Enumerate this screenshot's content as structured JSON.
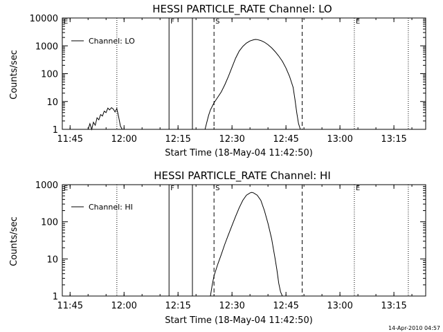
{
  "footer_timestamp": "14-Apr-2010 04:57",
  "chart_data": [
    {
      "type": "line",
      "title": "HESSI PARTICLE_RATE Channel: LO",
      "xlabel": "Start Time (18-May-04 11:42:50)",
      "ylabel": "Counts/sec",
      "x_unit": "minutes since 11:42:50",
      "xlim": [
        0,
        101
      ],
      "ylim": [
        1,
        10000
      ],
      "yscale": "log",
      "grid": false,
      "legend": {
        "position": "top-left",
        "entries": [
          "Channel: LO"
        ]
      },
      "x_tick_labels": [
        "11:45",
        "12:00",
        "12:15",
        "12:30",
        "12:45",
        "13:00",
        "13:15"
      ],
      "x_tick_times": [
        "11:45",
        "12:00",
        "12:15",
        "12:30",
        "12:45",
        "13:00",
        "13:15"
      ],
      "y_tick_labels": [
        "1",
        "10",
        "100",
        "1000",
        "10000"
      ],
      "y_tick_values": [
        1,
        10,
        100,
        1000,
        10000
      ],
      "markers": [
        {
          "label": "F",
          "time": "12:12:30",
          "style": "solid"
        },
        {
          "label": "",
          "time": "12:19:00",
          "style": "solid"
        },
        {
          "label": "S",
          "time": "12:25:00",
          "style": "dashed"
        },
        {
          "label": "",
          "time": "12:49:30",
          "style": "dashed"
        },
        {
          "label": "",
          "time": "11:58:00",
          "style": "dotted"
        },
        {
          "label": "E",
          "time": "13:04:00",
          "style": "dotted"
        },
        {
          "label": "",
          "time": "13:19:00",
          "style": "dotted"
        },
        {
          "label": "E",
          "time": "11:42:50",
          "style": "none"
        }
      ],
      "series": [
        {
          "name": "Channel: LO",
          "segments": [
            [
              [
                "11:50:00",
                1
              ],
              [
                "11:50:30",
                1.6
              ],
              [
                "11:51:00",
                1
              ],
              [
                "11:51:30",
                1.8
              ],
              [
                "11:52:00",
                1.4
              ],
              [
                "11:52:30",
                2.6
              ],
              [
                "11:53:00",
                2.2
              ],
              [
                "11:53:30",
                3.4
              ],
              [
                "11:54:00",
                3.0
              ],
              [
                "11:54:30",
                4.5
              ],
              [
                "11:55:00",
                4.0
              ],
              [
                "11:55:30",
                5.8
              ],
              [
                "11:56:00",
                5.0
              ],
              [
                "11:56:30",
                6.0
              ],
              [
                "11:57:00",
                5.4
              ],
              [
                "11:57:30",
                4.2
              ],
              [
                "11:58:00",
                5.6
              ],
              [
                "11:58:30",
                2.8
              ],
              [
                "11:59:00",
                1.3
              ],
              [
                "11:59:30",
                1
              ]
            ],
            [
              [
                "12:22:30",
                1
              ],
              [
                "12:23:00",
                1.8
              ],
              [
                "12:23:30",
                3.2
              ],
              [
                "12:24:00",
                5
              ],
              [
                "12:25:00",
                9
              ],
              [
                "12:26:00",
                14
              ],
              [
                "12:27:00",
                22
              ],
              [
                "12:28:00",
                40
              ],
              [
                "12:29:00",
                80
              ],
              [
                "12:30:00",
                170
              ],
              [
                "12:31:00",
                360
              ],
              [
                "12:32:00",
                650
              ],
              [
                "12:33:00",
                950
              ],
              [
                "12:34:00",
                1250
              ],
              [
                "12:35:00",
                1500
              ],
              [
                "12:36:00",
                1650
              ],
              [
                "12:36:30",
                1700
              ],
              [
                "12:37:00",
                1680
              ],
              [
                "12:38:00",
                1550
              ],
              [
                "12:39:00",
                1350
              ],
              [
                "12:40:00",
                1100
              ],
              [
                "12:41:00",
                850
              ],
              [
                "12:42:00",
                620
              ],
              [
                "12:43:00",
                430
              ],
              [
                "12:44:00",
                280
              ],
              [
                "12:45:00",
                160
              ],
              [
                "12:46:00",
                80
              ],
              [
                "12:47:00",
                32
              ],
              [
                "12:47:30",
                12
              ],
              [
                "12:48:00",
                4
              ],
              [
                "12:48:30",
                1.6
              ],
              [
                "12:49:00",
                1
              ]
            ]
          ]
        }
      ]
    },
    {
      "type": "line",
      "title": "HESSI PARTICLE_RATE Channel: HI",
      "xlabel": "Start Time (18-May-04 11:42:50)",
      "ylabel": "Counts/sec",
      "x_unit": "minutes since 11:42:50",
      "xlim": [
        0,
        101
      ],
      "ylim": [
        1,
        1000
      ],
      "yscale": "log",
      "grid": false,
      "legend": {
        "position": "top-left",
        "entries": [
          "Channel: HI"
        ]
      },
      "x_tick_labels": [
        "11:45",
        "12:00",
        "12:15",
        "12:30",
        "12:45",
        "13:00",
        "13:15"
      ],
      "x_tick_times": [
        "11:45",
        "12:00",
        "12:15",
        "12:30",
        "12:45",
        "13:00",
        "13:15"
      ],
      "y_tick_labels": [
        "1",
        "10",
        "100",
        "1000"
      ],
      "y_tick_values": [
        1,
        10,
        100,
        1000
      ],
      "markers": [
        {
          "label": "F",
          "time": "12:12:30",
          "style": "solid"
        },
        {
          "label": "",
          "time": "12:19:00",
          "style": "solid"
        },
        {
          "label": "S",
          "time": "12:25:00",
          "style": "dashed"
        },
        {
          "label": "",
          "time": "12:49:30",
          "style": "dashed"
        },
        {
          "label": "",
          "time": "11:58:00",
          "style": "dotted"
        },
        {
          "label": "E",
          "time": "13:04:00",
          "style": "dotted"
        },
        {
          "label": "",
          "time": "13:19:00",
          "style": "dotted"
        },
        {
          "label": "E",
          "time": "11:42:50",
          "style": "none"
        }
      ],
      "series": [
        {
          "name": "Channel: HI",
          "segments": [
            [
              [
                "12:24:00",
                1
              ],
              [
                "12:24:30",
                2
              ],
              [
                "12:25:00",
                3.5
              ],
              [
                "12:26:00",
                7
              ],
              [
                "12:27:00",
                13
              ],
              [
                "12:28:00",
                25
              ],
              [
                "12:29:00",
                45
              ],
              [
                "12:30:00",
                80
              ],
              [
                "12:31:00",
                140
              ],
              [
                "12:32:00",
                240
              ],
              [
                "12:33:00",
                380
              ],
              [
                "12:34:00",
                520
              ],
              [
                "12:35:00",
                600
              ],
              [
                "12:35:30",
                620
              ],
              [
                "12:36:00",
                600
              ],
              [
                "12:37:00",
                520
              ],
              [
                "12:38:00",
                380
              ],
              [
                "12:39:00",
                200
              ],
              [
                "12:40:00",
                90
              ],
              [
                "12:41:00",
                35
              ],
              [
                "12:42:00",
                10
              ],
              [
                "12:42:30",
                5
              ],
              [
                "12:43:00",
                2.2
              ],
              [
                "12:43:30",
                1.3
              ],
              [
                "12:44:00",
                1
              ]
            ]
          ]
        }
      ]
    }
  ]
}
